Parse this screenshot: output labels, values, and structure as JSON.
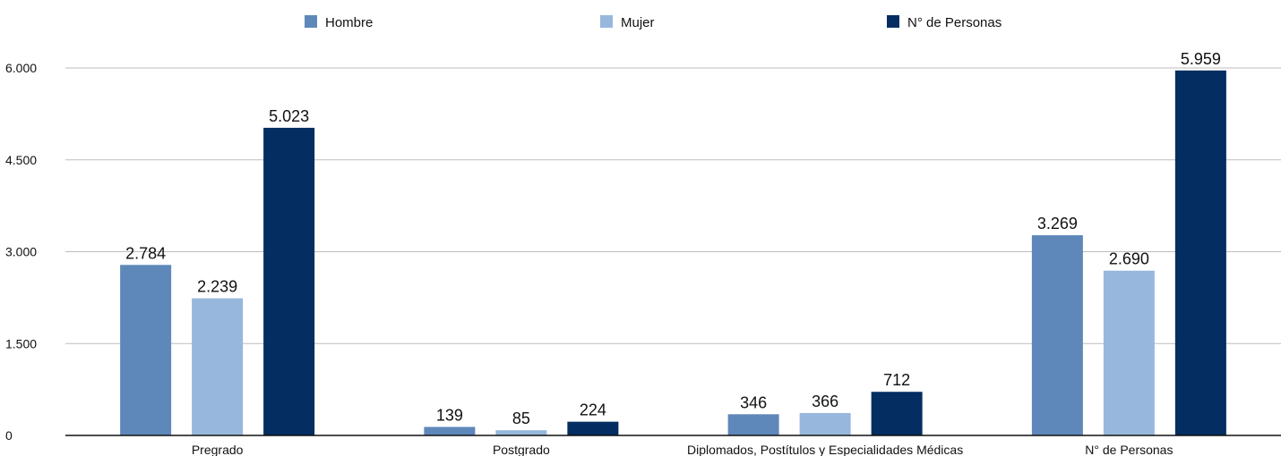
{
  "chart_data": {
    "type": "bar",
    "categories": [
      "Pregrado",
      "Postgrado",
      "Diplomados, Postítulos y Especialidades Médicas",
      "N° de Personas"
    ],
    "series": [
      {
        "name": "Hombre",
        "values": [
          2784,
          139,
          346,
          3269
        ],
        "labels": [
          "2.784",
          "139",
          "346",
          "3.269"
        ],
        "color": "#5e88ba"
      },
      {
        "name": "Mujer",
        "values": [
          2239,
          85,
          366,
          2690
        ],
        "labels": [
          "2.239",
          "85",
          "366",
          "2.690"
        ],
        "color": "#97b8dc"
      },
      {
        "name": "N° de Personas",
        "values": [
          5023,
          224,
          712,
          5959
        ],
        "labels": [
          "5.023",
          "224",
          "712",
          "5.959"
        ],
        "color": "#042d61"
      }
    ],
    "yticks": [
      0,
      1500,
      3000,
      4500,
      6000
    ],
    "ytick_labels": [
      "0",
      "1.500",
      "3.000",
      "4.500",
      "6.000"
    ],
    "ylim": [
      0,
      6000
    ],
    "grid": true,
    "legend": "top-center",
    "title": "",
    "xlabel": "",
    "ylabel": ""
  }
}
